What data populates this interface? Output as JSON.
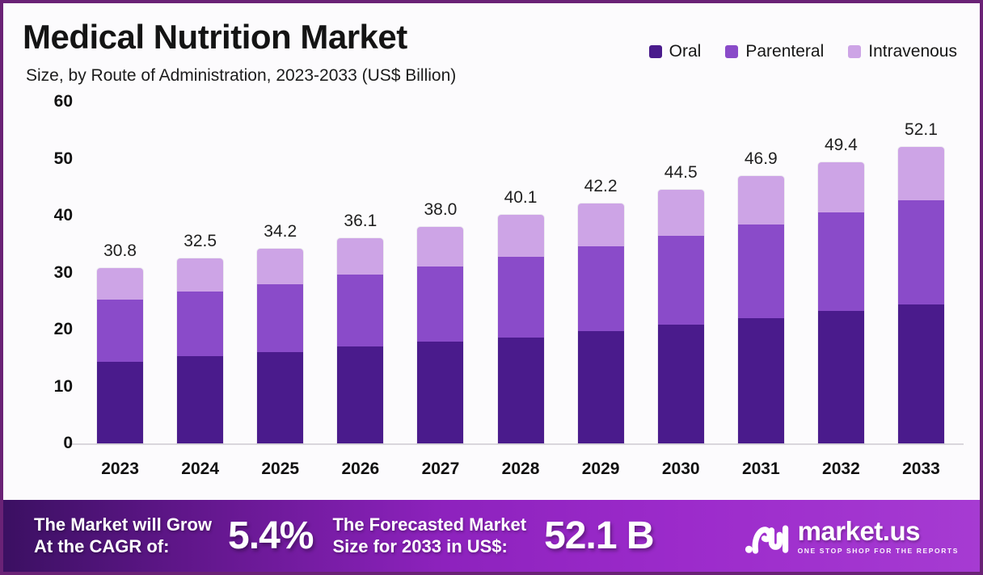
{
  "header": {
    "title": "Medical Nutrition Market",
    "subtitle": "Size, by Route of Administration, 2023-2033 (US$ Billion)"
  },
  "legend": {
    "items": [
      {
        "label": "Oral",
        "color": "#4a1b8c"
      },
      {
        "label": "Parenteral",
        "color": "#8a4bc9"
      },
      {
        "label": "Intravenous",
        "color": "#cda4e6"
      }
    ]
  },
  "chart_data": {
    "type": "bar",
    "stacked": true,
    "title": "Medical Nutrition Market Size, by Route of Administration, 2023-2033 (US$ Billion)",
    "categories": [
      "2023",
      "2024",
      "2025",
      "2026",
      "2027",
      "2028",
      "2029",
      "2030",
      "2031",
      "2032",
      "2033"
    ],
    "series": [
      {
        "name": "Oral",
        "color": "#4a1b8c",
        "values": [
          14.3,
          15.3,
          16.1,
          17.0,
          17.9,
          18.6,
          19.7,
          20.9,
          22.0,
          23.2,
          24.4
        ]
      },
      {
        "name": "Parenteral",
        "color": "#8a4bc9",
        "values": [
          11.0,
          11.4,
          11.9,
          12.6,
          13.2,
          14.2,
          14.9,
          15.5,
          16.5,
          17.4,
          18.3
        ]
      },
      {
        "name": "Intravenous",
        "color": "#cda4e6",
        "values": [
          5.5,
          5.8,
          6.2,
          6.5,
          6.9,
          7.3,
          7.6,
          8.1,
          8.4,
          8.8,
          9.4
        ]
      }
    ],
    "totals": [
      30.8,
      32.5,
      34.2,
      36.1,
      38.0,
      40.1,
      42.2,
      44.5,
      46.9,
      49.4,
      52.1
    ],
    "total_labels": [
      "30.8",
      "32.5",
      "34.2",
      "36.1",
      "38.0",
      "40.1",
      "42.2",
      "44.5",
      "46.9",
      "49.4",
      "52.1"
    ],
    "xlabel": "",
    "ylabel": "",
    "ylim": [
      0,
      60
    ],
    "yticks": [
      0,
      10,
      20,
      30,
      40,
      50,
      60
    ],
    "grid": false,
    "legend_position": "top-right"
  },
  "banner": {
    "cagr_label_line1": "The Market will Grow",
    "cagr_label_line2": "At the CAGR of:",
    "cagr_value": "5.4%",
    "forecast_label_line1": "The Forecasted Market",
    "forecast_label_line2": "Size for 2033 in US$:",
    "forecast_value": "52.1 B",
    "brand": {
      "name": "market.us",
      "tagline": "ONE STOP SHOP FOR THE REPORTS"
    }
  }
}
